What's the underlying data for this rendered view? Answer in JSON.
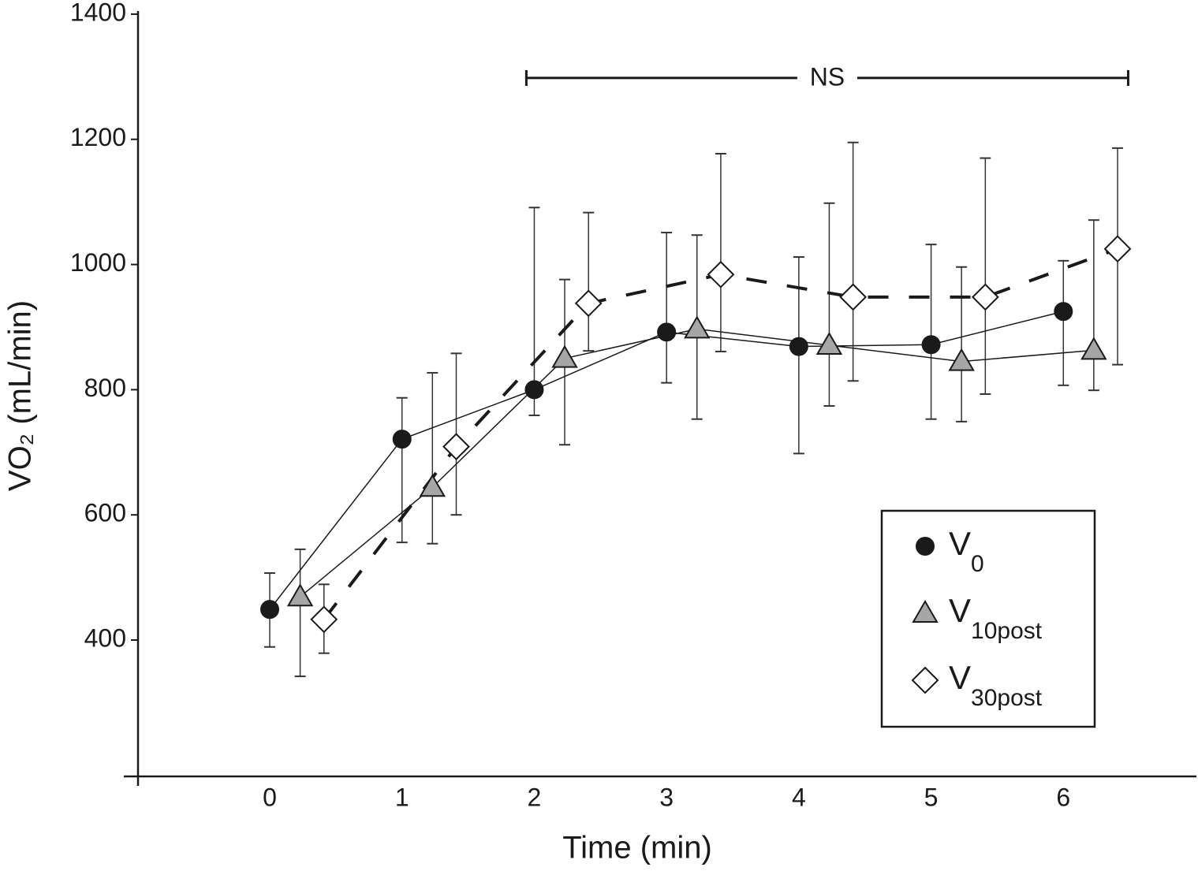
{
  "chart_data": {
    "type": "line",
    "x_label": "Time (min)",
    "y_label": "VO₂ (mL/min)",
    "xlim": [
      -1,
      7
    ],
    "ylim": [
      180,
      1410
    ],
    "xticks": [
      0,
      1,
      2,
      3,
      4,
      5,
      6
    ],
    "yticks": [
      400,
      600,
      800,
      1000,
      1200,
      1400
    ],
    "legend": "lower right",
    "annotation": {
      "text": "NS",
      "x": [
        1.94,
        6.49
      ],
      "y": 1298
    },
    "series": [
      {
        "name": "V0",
        "color": "#1a1a1a",
        "marker": "circle",
        "line_style": "solid",
        "x": [
          0,
          1,
          2,
          3,
          4,
          5,
          6
        ],
        "values": [
          449,
          721,
          800,
          892,
          869,
          872,
          925
        ],
        "error_low": [
          389,
          556,
          759,
          811,
          698,
          753,
          807
        ],
        "error_high": [
          507,
          787,
          1091,
          1051,
          1012,
          1032,
          1006
        ]
      },
      {
        "name": "V10post",
        "color": "#a6a6a6",
        "marker": "triangle",
        "line_style": "solid",
        "x": [
          0.23,
          1.23,
          2.23,
          3.23,
          4.23,
          5.23,
          6.23
        ],
        "values": [
          469,
          644,
          850,
          897,
          871,
          845,
          863
        ],
        "error_low": [
          342,
          554,
          712,
          753,
          774,
          749,
          799
        ],
        "error_high": [
          545,
          827,
          976,
          1047,
          1098,
          996,
          1071
        ]
      },
      {
        "name": "V30post",
        "color": "#ffffff",
        "marker": "diamond",
        "line_style": "dashed",
        "x": [
          0.41,
          1.41,
          2.41,
          3.41,
          4.41,
          5.41,
          6.41
        ],
        "values": [
          433,
          709,
          938,
          984,
          948,
          948,
          1025
        ],
        "error_low": [
          379,
          600,
          862,
          861,
          814,
          793,
          840
        ],
        "error_high": [
          489,
          858,
          1083,
          1177,
          1195,
          1170,
          1186
        ]
      }
    ]
  }
}
